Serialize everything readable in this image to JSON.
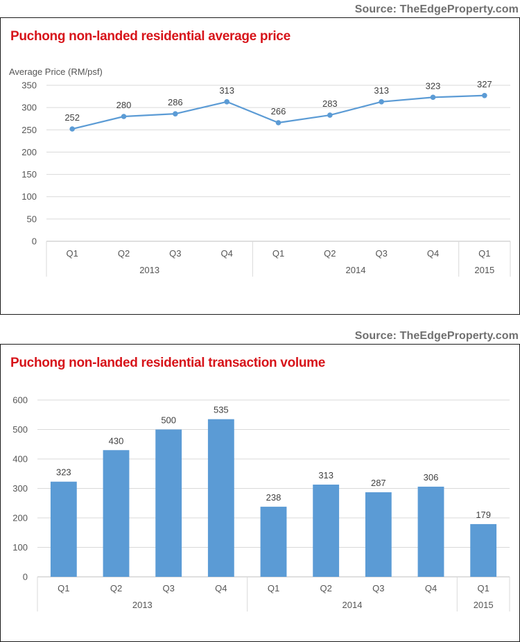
{
  "charts": [
    {
      "source": "Source: TheEdgeProperty.com",
      "title": "Puchong non-landed residential average price"
    },
    {
      "source": "Source: TheEdgeProperty.com",
      "title": "Puchong non-landed residential transaction volume"
    }
  ],
  "chart_data": [
    {
      "type": "line",
      "title": "Puchong non-landed residential average price",
      "ylabel": "Average Price (RM/psf)",
      "xlabel": "",
      "categories": [
        "Q1",
        "Q2",
        "Q3",
        "Q4",
        "Q1",
        "Q2",
        "Q3",
        "Q4",
        "Q1"
      ],
      "groups": [
        {
          "label": "2013",
          "count": 4
        },
        {
          "label": "2014",
          "count": 4
        },
        {
          "label": "2015",
          "count": 1
        }
      ],
      "values": [
        252,
        280,
        286,
        313,
        266,
        283,
        313,
        323,
        327
      ],
      "ylim": [
        0,
        350
      ],
      "yticks": [
        0,
        50,
        100,
        150,
        200,
        250,
        300,
        350
      ],
      "grid": true,
      "color": "#5b9bd5"
    },
    {
      "type": "bar",
      "title": "Puchong non-landed residential transaction volume",
      "ylabel": "",
      "xlabel": "",
      "categories": [
        "Q1",
        "Q2",
        "Q3",
        "Q4",
        "Q1",
        "Q2",
        "Q3",
        "Q4",
        "Q1"
      ],
      "groups": [
        {
          "label": "2013",
          "count": 4
        },
        {
          "label": "2014",
          "count": 4
        },
        {
          "label": "2015",
          "count": 1
        }
      ],
      "values": [
        323,
        430,
        500,
        535,
        238,
        313,
        287,
        306,
        179
      ],
      "ylim": [
        0,
        600
      ],
      "yticks": [
        0,
        100,
        200,
        300,
        400,
        500,
        600
      ],
      "grid": true,
      "color": "#5b9bd5"
    }
  ]
}
